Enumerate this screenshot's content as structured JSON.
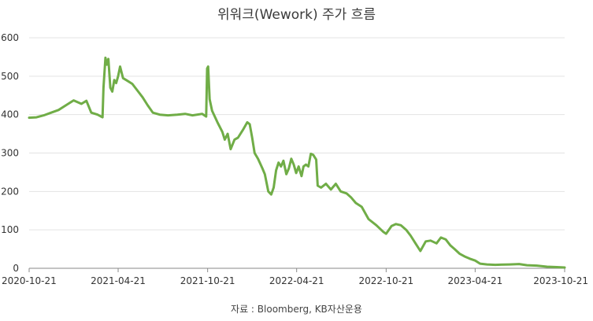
{
  "chart_data": {
    "type": "line",
    "title": "위워크(Wework) 주가 흐름",
    "source": "자료 : Bloomberg, KB자산운용",
    "xlabel": "",
    "ylabel": "",
    "ylim": [
      0,
      600
    ],
    "yticks": [
      0,
      100,
      200,
      300,
      400,
      500,
      600
    ],
    "xlim": [
      "2020-10-21",
      "2023-10-21"
    ],
    "xticks": [
      "2020-10-21",
      "2021-04-21",
      "2021-10-21",
      "2022-04-21",
      "2022-10-21",
      "2023-04-21",
      "2023-10-21"
    ],
    "grid": true,
    "color": "#70ad47",
    "series": [
      {
        "name": "",
        "points": [
          [
            "2020-10-21",
            392
          ],
          [
            "2020-11-05",
            393
          ],
          [
            "2020-11-20",
            398
          ],
          [
            "2020-12-05",
            405
          ],
          [
            "2020-12-20",
            412
          ],
          [
            "2021-01-05",
            425
          ],
          [
            "2021-01-20",
            437
          ],
          [
            "2021-02-05",
            428
          ],
          [
            "2021-02-15",
            436
          ],
          [
            "2021-02-25",
            405
          ],
          [
            "2021-03-10",
            400
          ],
          [
            "2021-03-20",
            393
          ],
          [
            "2021-03-22",
            470
          ],
          [
            "2021-03-26",
            548
          ],
          [
            "2021-03-29",
            530
          ],
          [
            "2021-04-01",
            545
          ],
          [
            "2021-04-05",
            470
          ],
          [
            "2021-04-09",
            460
          ],
          [
            "2021-04-13",
            490
          ],
          [
            "2021-04-17",
            482
          ],
          [
            "2021-04-21",
            500
          ],
          [
            "2021-04-25",
            525
          ],
          [
            "2021-05-01",
            495
          ],
          [
            "2021-05-10",
            488
          ],
          [
            "2021-05-20",
            480
          ],
          [
            "2021-06-01",
            460
          ],
          [
            "2021-06-10",
            445
          ],
          [
            "2021-06-20",
            425
          ],
          [
            "2021-07-01",
            405
          ],
          [
            "2021-07-15",
            400
          ],
          [
            "2021-08-01",
            398
          ],
          [
            "2021-08-20",
            400
          ],
          [
            "2021-09-05",
            402
          ],
          [
            "2021-09-20",
            398
          ],
          [
            "2021-10-10",
            402
          ],
          [
            "2021-10-18",
            395
          ],
          [
            "2021-10-20",
            520
          ],
          [
            "2021-10-22",
            525
          ],
          [
            "2021-10-25",
            440
          ],
          [
            "2021-10-30",
            410
          ],
          [
            "2021-11-10",
            380
          ],
          [
            "2021-11-20",
            355
          ],
          [
            "2021-11-25",
            335
          ],
          [
            "2021-12-01",
            350
          ],
          [
            "2021-12-07",
            310
          ],
          [
            "2021-12-15",
            335
          ],
          [
            "2021-12-22",
            340
          ],
          [
            "2022-01-01",
            360
          ],
          [
            "2022-01-10",
            380
          ],
          [
            "2022-01-15",
            375
          ],
          [
            "2022-01-20",
            340
          ],
          [
            "2022-01-25",
            300
          ],
          [
            "2022-02-01",
            285
          ],
          [
            "2022-02-10",
            260
          ],
          [
            "2022-02-15",
            245
          ],
          [
            "2022-02-22",
            200
          ],
          [
            "2022-02-28",
            192
          ],
          [
            "2022-03-05",
            210
          ],
          [
            "2022-03-10",
            255
          ],
          [
            "2022-03-15",
            275
          ],
          [
            "2022-03-20",
            265
          ],
          [
            "2022-03-25",
            280
          ],
          [
            "2022-03-31",
            245
          ],
          [
            "2022-04-05",
            260
          ],
          [
            "2022-04-10",
            285
          ],
          [
            "2022-04-15",
            270
          ],
          [
            "2022-04-20",
            248
          ],
          [
            "2022-04-25",
            265
          ],
          [
            "2022-05-01",
            240
          ],
          [
            "2022-05-05",
            265
          ],
          [
            "2022-05-10",
            270
          ],
          [
            "2022-05-15",
            265
          ],
          [
            "2022-05-20",
            298
          ],
          [
            "2022-05-25",
            295
          ],
          [
            "2022-05-31",
            283
          ],
          [
            "2022-06-03",
            215
          ],
          [
            "2022-06-10",
            210
          ],
          [
            "2022-06-20",
            220
          ],
          [
            "2022-06-30",
            205
          ],
          [
            "2022-07-10",
            220
          ],
          [
            "2022-07-20",
            200
          ],
          [
            "2022-08-01",
            195
          ],
          [
            "2022-08-10",
            185
          ],
          [
            "2022-08-20",
            170
          ],
          [
            "2022-09-01",
            160
          ],
          [
            "2022-09-15",
            128
          ],
          [
            "2022-10-01",
            112
          ],
          [
            "2022-10-15",
            95
          ],
          [
            "2022-10-21",
            90
          ],
          [
            "2022-11-01",
            110
          ],
          [
            "2022-11-10",
            115
          ],
          [
            "2022-11-20",
            112
          ],
          [
            "2022-12-01",
            100
          ],
          [
            "2022-12-10",
            85
          ],
          [
            "2022-12-20",
            65
          ],
          [
            "2022-12-30",
            45
          ],
          [
            "2023-01-10",
            70
          ],
          [
            "2023-01-20",
            72
          ],
          [
            "2023-02-01",
            65
          ],
          [
            "2023-02-10",
            80
          ],
          [
            "2023-02-20",
            75
          ],
          [
            "2023-03-01",
            60
          ],
          [
            "2023-03-10",
            50
          ],
          [
            "2023-03-20",
            38
          ],
          [
            "2023-04-01",
            30
          ],
          [
            "2023-04-10",
            25
          ],
          [
            "2023-04-21",
            20
          ],
          [
            "2023-05-01",
            12
          ],
          [
            "2023-05-15",
            10
          ],
          [
            "2023-06-01",
            9
          ],
          [
            "2023-07-01",
            10
          ],
          [
            "2023-07-20",
            11
          ],
          [
            "2023-08-05",
            8
          ],
          [
            "2023-08-25",
            7
          ],
          [
            "2023-09-15",
            4
          ],
          [
            "2023-10-05",
            3
          ],
          [
            "2023-10-21",
            2
          ]
        ]
      }
    ]
  }
}
